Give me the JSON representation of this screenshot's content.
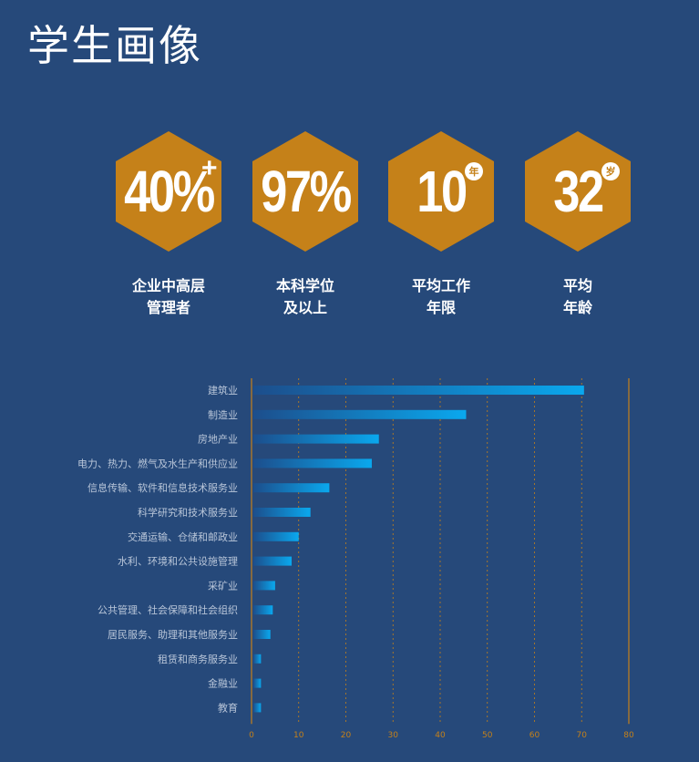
{
  "title": "学生画像",
  "stats": [
    {
      "value": "40%",
      "suffix": "+",
      "label": "企业中高层\n管理者"
    },
    {
      "value": "97%",
      "suffix": "",
      "label": "本科学位\n及以上"
    },
    {
      "value": "10",
      "suffix": "年",
      "label": "平均工作\n年限"
    },
    {
      "value": "32",
      "suffix": "岁",
      "label": "平均\n年龄"
    }
  ],
  "colors": {
    "background": "#26497a",
    "hexagon": "#c58119",
    "bar_start": "#1c4e8c",
    "bar_end": "#0aa8ee",
    "axis": "#c58119"
  },
  "chart_data": {
    "type": "bar",
    "orientation": "horizontal",
    "categories": [
      "建筑业",
      "制造业",
      "房地产业",
      "电力、热力、燃气及水生产和供应业",
      "信息传输、软件和信息技术服务业",
      "科学研究和技术服务业",
      "交通运输、仓储和邮政业",
      "水利、环境和公共设施管理",
      "采矿业",
      "公共管理、社会保障和社会组织",
      "居民服务、助理和其他服务业",
      "租赁和商务服务业",
      "金融业",
      "教育"
    ],
    "values": [
      70.5,
      45.5,
      27,
      25.5,
      16.5,
      12.5,
      10,
      8.5,
      5,
      4.5,
      4,
      2,
      2,
      2
    ],
    "xlim": [
      0,
      80
    ],
    "xticks": [
      "0",
      "10",
      "20",
      "30",
      "40",
      "50",
      "60",
      "70",
      "80"
    ],
    "grid": true
  }
}
